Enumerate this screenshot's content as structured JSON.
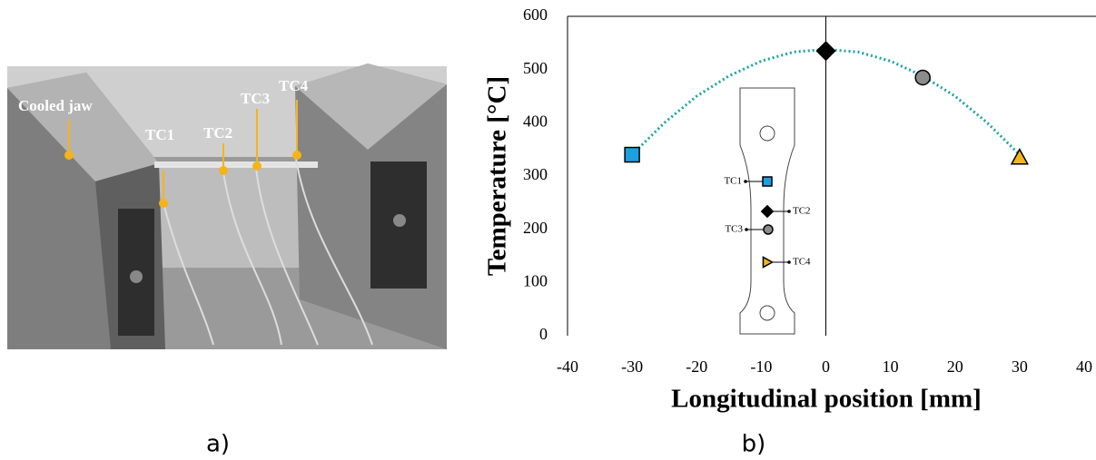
{
  "photo_labels": [
    "Cooled jaw",
    "TC1",
    "TC2",
    "TC3",
    "TC4"
  ],
  "captions": [
    "a)",
    "b)"
  ],
  "chart_data": {
    "type": "scatter",
    "xlabel": "Longitudinal position [mm]",
    "ylabel": "Temperature [°C]",
    "xlim": [
      -40,
      40
    ],
    "xticks": [
      -40,
      -30,
      -20,
      -10,
      0,
      10,
      20,
      30,
      40
    ],
    "ylim": [
      0,
      600
    ],
    "yticks": [
      0,
      100,
      200,
      300,
      400,
      500,
      600
    ],
    "grid": false,
    "series": [
      {
        "name": "TC1",
        "color": "#1ba1e2",
        "marker": "square",
        "x": [
          -30
        ],
        "values": [
          340
        ]
      },
      {
        "name": "TC2",
        "color": "#000000",
        "marker": "diamond",
        "x": [
          0
        ],
        "values": [
          535
        ]
      },
      {
        "name": "TC3",
        "color": "#8c8c8c",
        "marker": "circle",
        "x": [
          15
        ],
        "values": [
          485
        ]
      },
      {
        "name": "TC4",
        "color": "#f4b41a",
        "marker": "triangle",
        "x": [
          30
        ],
        "values": [
          335
        ]
      }
    ],
    "trendline": {
      "color": "#17a2a8",
      "x": [
        -30,
        -25,
        -20,
        -15,
        -10,
        -5,
        0,
        5,
        10,
        15,
        20,
        25,
        30
      ],
      "values": [
        340,
        400,
        450,
        488,
        516,
        533,
        538,
        533,
        516,
        488,
        450,
        400,
        340
      ]
    }
  }
}
